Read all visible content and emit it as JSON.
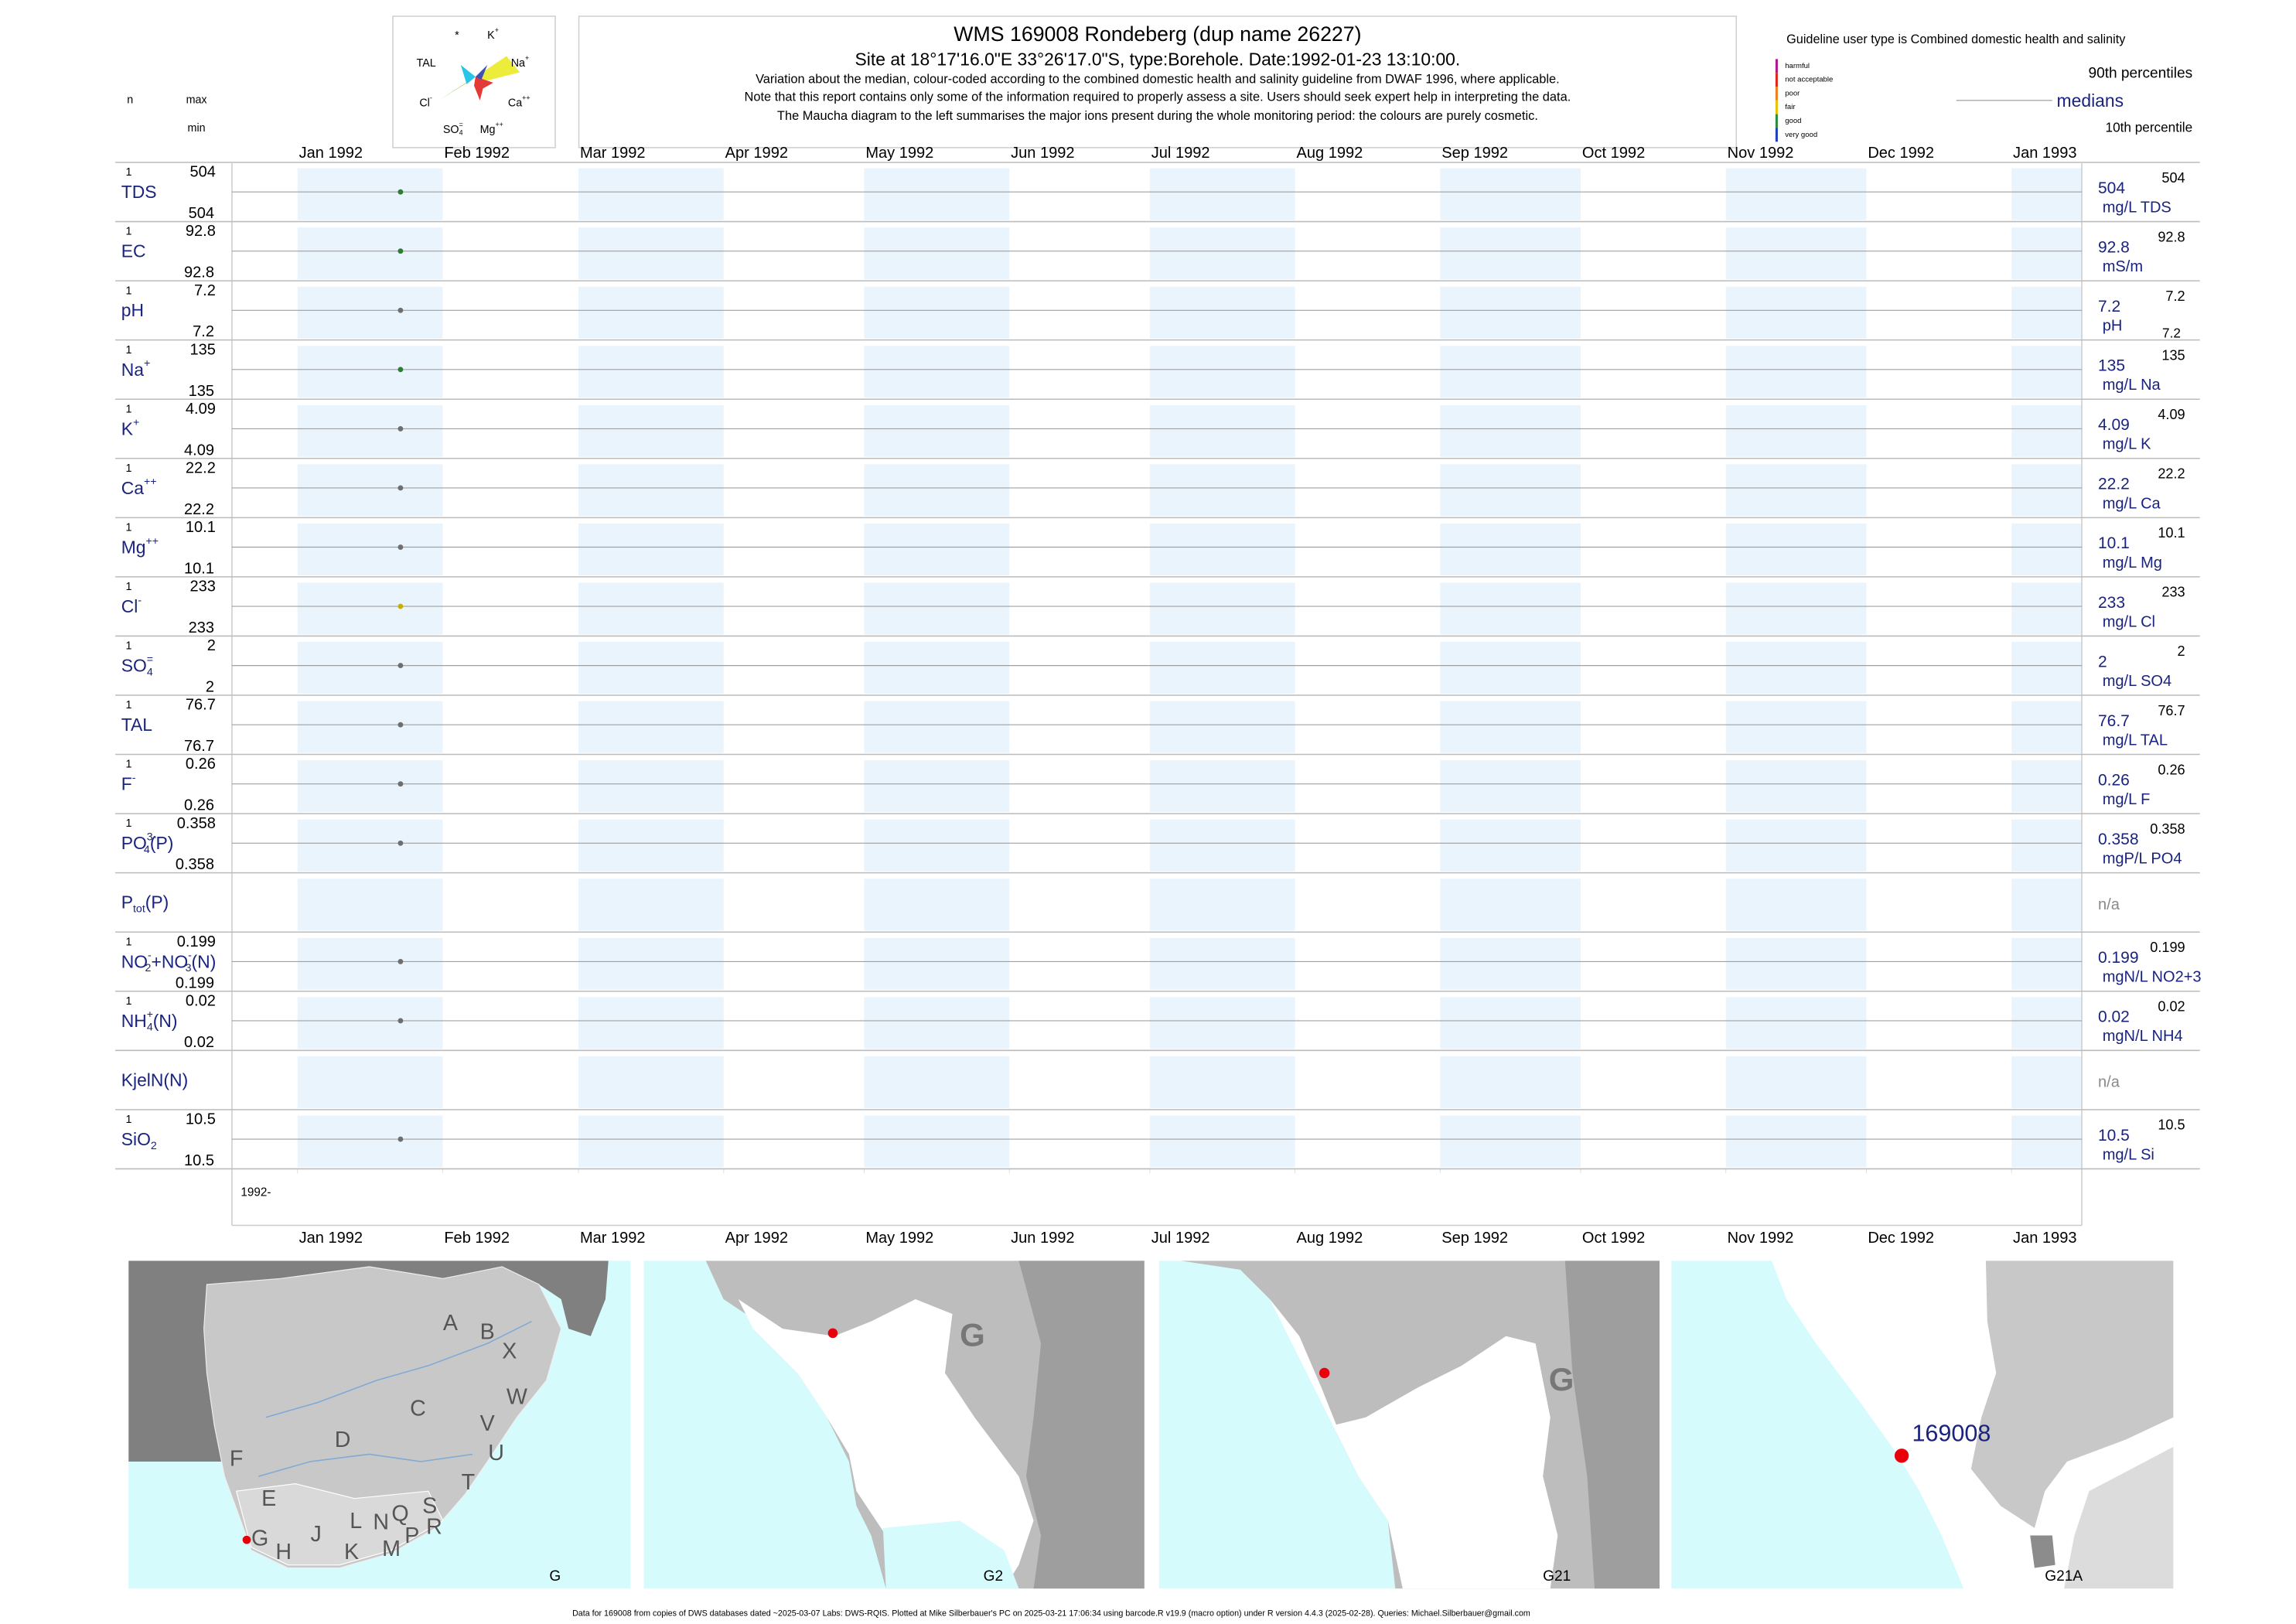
{
  "header": {
    "title": "WMS 169008  Rondeberg (dup name 26227)",
    "subtitle": "Site at 18°17'16.0\"E 33°26'17.0\"S, type:Borehole. Date:1992-01-23 13:10:00.",
    "notes": [
      "Variation about the median,  colour-coded according to the combined domestic health and salinity guideline from DWAF 1996, where applicable.",
      "Note that this report contains only some of the information required to properly assess a site. Users should seek expert help in interpreting the data.",
      "The Maucha diagram to the left summarises the major ions present during the whole monitoring period: the colours are purely cosmetic."
    ]
  },
  "maucha": {
    "labels": [
      [
        {
          "text": "*"
        }
      ],
      [
        {
          "text": "K"
        },
        {
          "text": "+",
          "style": "sup"
        }
      ],
      [
        {
          "text": "TAL"
        }
      ],
      [
        {
          "text": "Na"
        },
        {
          "text": "+",
          "style": "sup"
        }
      ],
      [
        {
          "text": "Cl"
        },
        {
          "text": "-",
          "style": "sup"
        }
      ],
      [
        {
          "text": "Ca"
        },
        {
          "text": "++",
          "style": "sup"
        }
      ],
      [
        {
          "text": "SO"
        },
        {
          "text": "=",
          "style": "sup"
        },
        {
          "text": "4",
          "style": "sub"
        }
      ],
      [
        {
          "text": "Mg"
        },
        {
          "text": "++",
          "style": "sup"
        }
      ]
    ]
  },
  "guideline": {
    "title": "Guideline user type is Combined domestic health and salinity",
    "classes": [
      {
        "name": "harmful",
        "color": "#b0168f"
      },
      {
        "name": "not acceptable",
        "color": "#e2231a"
      },
      {
        "name": "poor",
        "color": "#f47c20"
      },
      {
        "name": "fair",
        "color": "#e5c400"
      },
      {
        "name": "good",
        "color": "#2e8b3a"
      },
      {
        "name": "very good",
        "color": "#1f3fbf"
      }
    ],
    "p90": "90th percentiles",
    "median": "medians",
    "p10": "10th percentile"
  },
  "chart_data": {
    "type": "strip",
    "column_headers": {
      "n": "n",
      "max": "max",
      "min": "min"
    },
    "xlim": [
      "1991-12-18",
      "1993-01-16"
    ],
    "xticks": [
      {
        "value": "1992-01",
        "label": "Jan 1992"
      },
      {
        "value": "1992-02",
        "label": "Feb 1992"
      },
      {
        "value": "1992-03",
        "label": "Mar 1992"
      },
      {
        "value": "1992-04",
        "label": "Apr 1992"
      },
      {
        "value": "1992-05",
        "label": "May 1992"
      },
      {
        "value": "1992-06",
        "label": "Jun 1992"
      },
      {
        "value": "1992-07",
        "label": "Jul 1992"
      },
      {
        "value": "1992-08",
        "label": "Aug 1992"
      },
      {
        "value": "1992-09",
        "label": "Sep 1992"
      },
      {
        "value": "1992-10",
        "label": "Oct 1992"
      },
      {
        "value": "1992-11",
        "label": "Nov 1992"
      },
      {
        "value": "1992-12",
        "label": "Dec 1992"
      },
      {
        "value": "1993-01",
        "label": "Jan 1993"
      }
    ],
    "x": "1992-01-23",
    "start_label": "1992-",
    "rows": [
      {
        "label": [
          {
            "text": "TDS"
          }
        ],
        "n": 1,
        "max": 504,
        "min": 504,
        "median": 504,
        "p90": 504,
        "unit": "mg/L TDS",
        "color": "#2e7d32"
      },
      {
        "label": [
          {
            "text": "EC"
          }
        ],
        "n": 1,
        "max": 92.8,
        "min": 92.8,
        "median": 92.8,
        "p90": 92.8,
        "unit": "mS/m",
        "color": "#2e7d32"
      },
      {
        "label": [
          {
            "text": "pH"
          }
        ],
        "n": 1,
        "max": 7.2,
        "min": 7.2,
        "median": 7.2,
        "p90": 7.2,
        "p10": 7.2,
        "unit": "pH",
        "color": "#6e6e6e"
      },
      {
        "label": [
          {
            "text": "Na"
          },
          {
            "text": "+",
            "style": "sup"
          }
        ],
        "n": 1,
        "max": 135,
        "min": 135,
        "median": 135,
        "p90": 135,
        "unit": "mg/L Na",
        "color": "#2e7d32"
      },
      {
        "label": [
          {
            "text": "K"
          },
          {
            "text": "+",
            "style": "sup"
          }
        ],
        "n": 1,
        "max": 4.09,
        "min": 4.09,
        "median": 4.09,
        "p90": 4.09,
        "unit": "mg/L K",
        "color": "#6e6e6e"
      },
      {
        "label": [
          {
            "text": "Ca"
          },
          {
            "text": "++",
            "style": "sup"
          }
        ],
        "n": 1,
        "max": 22.2,
        "min": 22.2,
        "median": 22.2,
        "p90": 22.2,
        "unit": "mg/L Ca",
        "color": "#6e6e6e"
      },
      {
        "label": [
          {
            "text": "Mg"
          },
          {
            "text": "++",
            "style": "sup"
          }
        ],
        "n": 1,
        "max": 10.1,
        "min": 10.1,
        "median": 10.1,
        "p90": 10.1,
        "unit": "mg/L Mg",
        "color": "#6e6e6e"
      },
      {
        "label": [
          {
            "text": "Cl"
          },
          {
            "text": "-",
            "style": "sup"
          }
        ],
        "n": 1,
        "max": 233,
        "min": 233,
        "median": 233,
        "p90": 233,
        "unit": "mg/L Cl",
        "color": "#c9b000"
      },
      {
        "label": [
          {
            "text": "SO"
          },
          {
            "text": "=",
            "style": "sup"
          },
          {
            "text": "4",
            "style": "sub"
          }
        ],
        "n": 1,
        "max": 2,
        "min": 2,
        "median": 2,
        "p90": 2,
        "unit": "mg/L SO4",
        "color": "#6e6e6e"
      },
      {
        "label": [
          {
            "text": "TAL"
          }
        ],
        "n": 1,
        "max": 76.7,
        "min": 76.7,
        "median": 76.7,
        "p90": 76.7,
        "unit": "mg/L TAL",
        "color": "#6e6e6e"
      },
      {
        "label": [
          {
            "text": "F"
          },
          {
            "text": "-",
            "style": "sup"
          }
        ],
        "n": 1,
        "max": 0.26,
        "min": 0.26,
        "median": 0.26,
        "p90": 0.26,
        "unit": "mg/L F",
        "color": "#6e6e6e"
      },
      {
        "label": [
          {
            "text": "PO"
          },
          {
            "text": "3-",
            "style": "sup"
          },
          {
            "text": "4",
            "style": "sub"
          },
          {
            "text": "(P)"
          }
        ],
        "n": 1,
        "max": 0.358,
        "min": 0.358,
        "median": 0.358,
        "p90": 0.358,
        "unit": "mgP/L PO4",
        "color": "#6e6e6e"
      },
      {
        "label": [
          {
            "text": "P"
          },
          {
            "text": "tot",
            "style": "sub"
          },
          {
            "text": "(P)"
          }
        ],
        "na": "n/a"
      },
      {
        "label": [
          {
            "text": "NO"
          },
          {
            "text": "-",
            "style": "sup"
          },
          {
            "text": "2",
            "style": "sub"
          },
          {
            "text": "+NO"
          },
          {
            "text": "-",
            "style": "sup"
          },
          {
            "text": "3",
            "style": "sub"
          },
          {
            "text": "(N)"
          }
        ],
        "n": 1,
        "max": 0.199,
        "min": 0.199,
        "median": 0.199,
        "p90": 0.199,
        "unit": "mgN/L NO2+3",
        "color": "#6e6e6e"
      },
      {
        "label": [
          {
            "text": "NH"
          },
          {
            "text": "+",
            "style": "sup"
          },
          {
            "text": "4",
            "style": "sub"
          },
          {
            "text": "(N)"
          }
        ],
        "n": 1,
        "max": 0.02,
        "min": 0.02,
        "median": 0.02,
        "p90": 0.02,
        "unit": "mgN/L NH4",
        "color": "#6e6e6e"
      },
      {
        "label": [
          {
            "text": "KjelN(N)"
          }
        ],
        "na": "n/a"
      },
      {
        "label": [
          {
            "text": "SiO"
          },
          {
            "text": "2",
            "style": "sub"
          }
        ],
        "n": 1,
        "max": 10.5,
        "min": 10.5,
        "median": 10.5,
        "p90": 10.5,
        "unit": "mg/L Si",
        "color": "#6e6e6e"
      }
    ]
  },
  "maps": [
    {
      "label": "G",
      "regions": [
        "A",
        "B",
        "X",
        "W",
        "C",
        "V",
        "U",
        "D",
        "F",
        "T",
        "E",
        "G",
        "H",
        "J",
        "L",
        "N",
        "Q",
        "S",
        "R",
        "P",
        "M",
        "K"
      ]
    },
    {
      "label": "G2",
      "region": "G"
    },
    {
      "label": "G21",
      "region": "G"
    },
    {
      "label": "G21A",
      "station": "169008"
    }
  ],
  "footer": "Data for 169008 from copies of DWS databases dated ~2025-03-07 Labs: DWS-RQIS. Plotted at Mike Silberbauer's PC on 2025-03-21 17:06:34 using barcode.R v19.9 (macro option) under R version 4.4.3 (2025-02-28). Queries: Michael.Silberbauer@gmail.com"
}
